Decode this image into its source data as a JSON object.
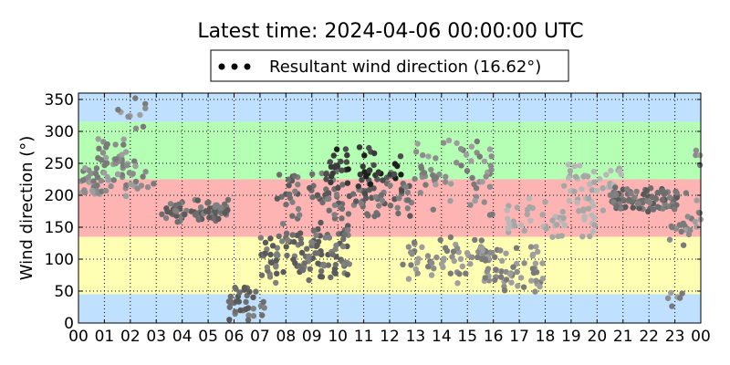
{
  "chart_data": {
    "type": "scatter",
    "title": "Latest time: 2024-04-06 00:00:00 UTC",
    "xlabel": "",
    "ylabel": "Wind direction (°)",
    "xlim": [
      0,
      24
    ],
    "ylim": [
      0,
      360
    ],
    "x_tick_labels": [
      "00",
      "01",
      "02",
      "03",
      "04",
      "05",
      "06",
      "07",
      "08",
      "09",
      "10",
      "11",
      "12",
      "13",
      "14",
      "15",
      "16",
      "17",
      "18",
      "19",
      "20",
      "21",
      "22",
      "23",
      "00"
    ],
    "y_ticks": [
      0,
      50,
      100,
      150,
      200,
      250,
      300,
      350
    ],
    "grid": true,
    "legend": {
      "label": "Resultant wind direction (16.62°)",
      "placement": "top-center"
    },
    "bands": [
      {
        "from": 0,
        "to": 45,
        "color": "#c0e0ff"
      },
      {
        "from": 45,
        "to": 135,
        "color": "#ffffb4"
      },
      {
        "from": 135,
        "to": 225,
        "color": "#ffb4b4"
      },
      {
        "from": 225,
        "to": 315,
        "color": "#b4ffb4"
      },
      {
        "from": 315,
        "to": 360,
        "color": "#c0e0ff"
      }
    ],
    "clusters": [
      {
        "x0": 0.0,
        "x1": 0.9,
        "y0": 180,
        "y1": 250,
        "n": 25,
        "shade": "mid"
      },
      {
        "x0": 0.6,
        "x1": 2.2,
        "y0": 190,
        "y1": 300,
        "n": 55,
        "shade": "mid"
      },
      {
        "x0": 1.5,
        "x1": 2.6,
        "y0": 290,
        "y1": 360,
        "n": 10,
        "shade": "mid"
      },
      {
        "x0": 2.0,
        "x1": 3.0,
        "y0": 200,
        "y1": 260,
        "n": 10,
        "shade": "mid"
      },
      {
        "x0": 3.2,
        "x1": 5.8,
        "y0": 155,
        "y1": 195,
        "n": 75,
        "shade": "dark"
      },
      {
        "x0": 5.8,
        "x1": 7.2,
        "y0": 0,
        "y1": 70,
        "n": 35,
        "shade": "dark"
      },
      {
        "x0": 7.0,
        "x1": 10.5,
        "y0": 60,
        "y1": 160,
        "n": 120,
        "shade": "dark"
      },
      {
        "x0": 7.5,
        "x1": 13.0,
        "y0": 150,
        "y1": 250,
        "n": 110,
        "shade": "dark"
      },
      {
        "x0": 9.5,
        "x1": 12.5,
        "y0": 200,
        "y1": 280,
        "n": 50,
        "shade": "black"
      },
      {
        "x0": 12.5,
        "x1": 16.5,
        "y0": 60,
        "y1": 140,
        "n": 70,
        "shade": "mid"
      },
      {
        "x0": 13.0,
        "x1": 16.0,
        "y0": 150,
        "y1": 300,
        "n": 60,
        "shade": "mid"
      },
      {
        "x0": 15.5,
        "x1": 18.0,
        "y0": 30,
        "y1": 130,
        "n": 50,
        "shade": "mid"
      },
      {
        "x0": 16.5,
        "x1": 20.0,
        "y0": 120,
        "y1": 200,
        "n": 50,
        "shade": "light"
      },
      {
        "x0": 18.5,
        "x1": 21.0,
        "y0": 170,
        "y1": 260,
        "n": 40,
        "shade": "light"
      },
      {
        "x0": 20.5,
        "x1": 23.2,
        "y0": 170,
        "y1": 215,
        "n": 90,
        "shade": "dark"
      },
      {
        "x0": 22.8,
        "x1": 24.0,
        "y0": 110,
        "y1": 210,
        "n": 25,
        "shade": "mid"
      },
      {
        "x0": 22.7,
        "x1": 23.3,
        "y0": 20,
        "y1": 65,
        "n": 6,
        "shade": "mid"
      },
      {
        "x0": 23.7,
        "x1": 24.0,
        "y0": 240,
        "y1": 280,
        "n": 4,
        "shade": "mid"
      }
    ]
  }
}
